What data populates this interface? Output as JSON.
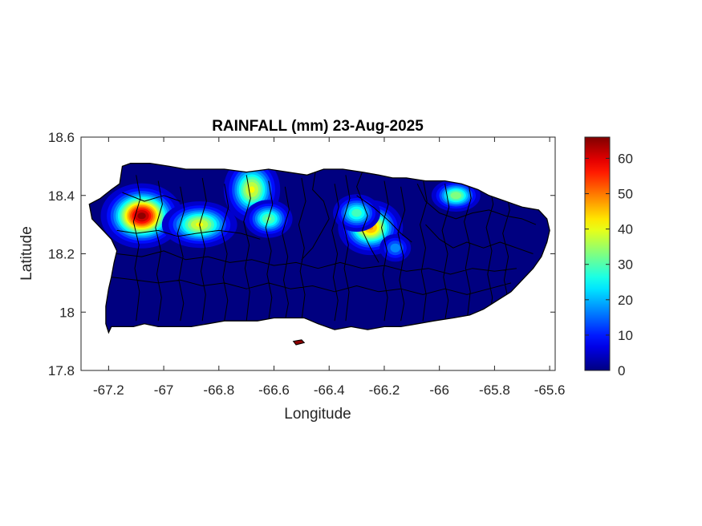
{
  "figure": {
    "title": "RAINFALL (mm) 23-Aug-2025",
    "xlabel": "Longitude",
    "ylabel": "Latitude"
  },
  "chart_data": {
    "type": "heatmap",
    "title": "RAINFALL (mm) 23-Aug-2025",
    "xlabel": "Longitude",
    "ylabel": "Latitude",
    "xlim": [
      -67.3,
      -65.58
    ],
    "ylim": [
      17.8,
      18.6
    ],
    "xticks": [
      -67.2,
      -67,
      -66.8,
      -66.6,
      -66.4,
      -66.2,
      -66,
      -65.8,
      -65.6
    ],
    "xtick_labels": [
      "-67.2",
      "-67",
      "-66.8",
      "-66.6",
      "-66.4",
      "-66.2",
      "-66",
      "-65.8",
      "-65.6"
    ],
    "yticks": [
      17.8,
      18,
      18.2,
      18.4,
      18.6
    ],
    "ytick_labels": [
      "17.8",
      "18",
      "18.2",
      "18.4",
      "18.6"
    ],
    "colormap": "jet",
    "clim": [
      0,
      66
    ],
    "colorbar_ticks": [
      0,
      10,
      20,
      30,
      40,
      50,
      60
    ],
    "colorbar_labels": [
      "0",
      "10",
      "20",
      "30",
      "40",
      "50",
      "60"
    ],
    "grid": false,
    "background_value_mm": 0,
    "rain_cells": [
      {
        "lon": -67.08,
        "lat": 18.33,
        "peak_mm": 65,
        "sx": 0.06,
        "sy": 0.045
      },
      {
        "lon": -66.87,
        "lat": 18.3,
        "peak_mm": 40,
        "sx": 0.06,
        "sy": 0.035
      },
      {
        "lon": -66.68,
        "lat": 18.42,
        "peak_mm": 40,
        "sx": 0.045,
        "sy": 0.05
      },
      {
        "lon": -66.62,
        "lat": 18.32,
        "peak_mm": 32,
        "sx": 0.04,
        "sy": 0.03
      },
      {
        "lon": -66.25,
        "lat": 18.29,
        "peak_mm": 48,
        "sx": 0.05,
        "sy": 0.04
      },
      {
        "lon": -66.3,
        "lat": 18.34,
        "peak_mm": 30,
        "sx": 0.04,
        "sy": 0.03
      },
      {
        "lon": -65.94,
        "lat": 18.4,
        "peak_mm": 35,
        "sx": 0.04,
        "sy": 0.025
      },
      {
        "lon": -66.16,
        "lat": 18.22,
        "peak_mm": 18,
        "sx": 0.03,
        "sy": 0.025
      }
    ]
  },
  "colors": {
    "coast": "#000000",
    "axes": "#262626"
  }
}
